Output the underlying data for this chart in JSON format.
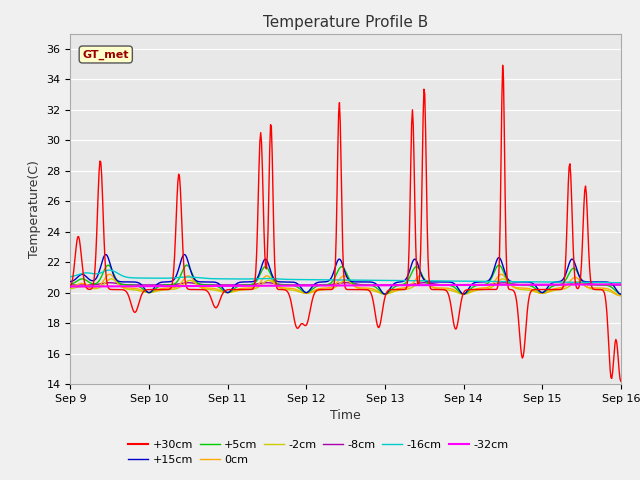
{
  "title": "Temperature Profile B",
  "xlabel": "Time",
  "ylabel": "Temperature(C)",
  "ylim": [
    14,
    37
  ],
  "yticks": [
    14,
    16,
    18,
    20,
    22,
    24,
    26,
    28,
    30,
    32,
    34,
    36
  ],
  "fig_bg": "#f0f0f0",
  "axes_bg": "#e8e8e8",
  "grid_color": "#ffffff",
  "series_colors": {
    "+30cm": "#ff0000",
    "+15cm": "#0000cc",
    "+5cm": "#00cc00",
    "0cm": "#ffaa00",
    "-2cm": "#cccc00",
    "-8cm": "#aa00aa",
    "-16cm": "#00cccc",
    "-32cm": "#ff00ff"
  },
  "legend_label": "GT_met",
  "legend_bg": "#ffffcc",
  "legend_border": "#555555",
  "legend_text_color": "#990000",
  "x_ticks": [
    0,
    1,
    2,
    3,
    4,
    5,
    6,
    7
  ],
  "x_tick_labels": [
    "Sep 9",
    "Sep 10",
    "Sep 11",
    "Sep 12",
    "Sep 13",
    "Sep 14",
    "Sep 15",
    "Sep 16"
  ],
  "figsize": [
    6.4,
    4.8
  ],
  "dpi": 100
}
